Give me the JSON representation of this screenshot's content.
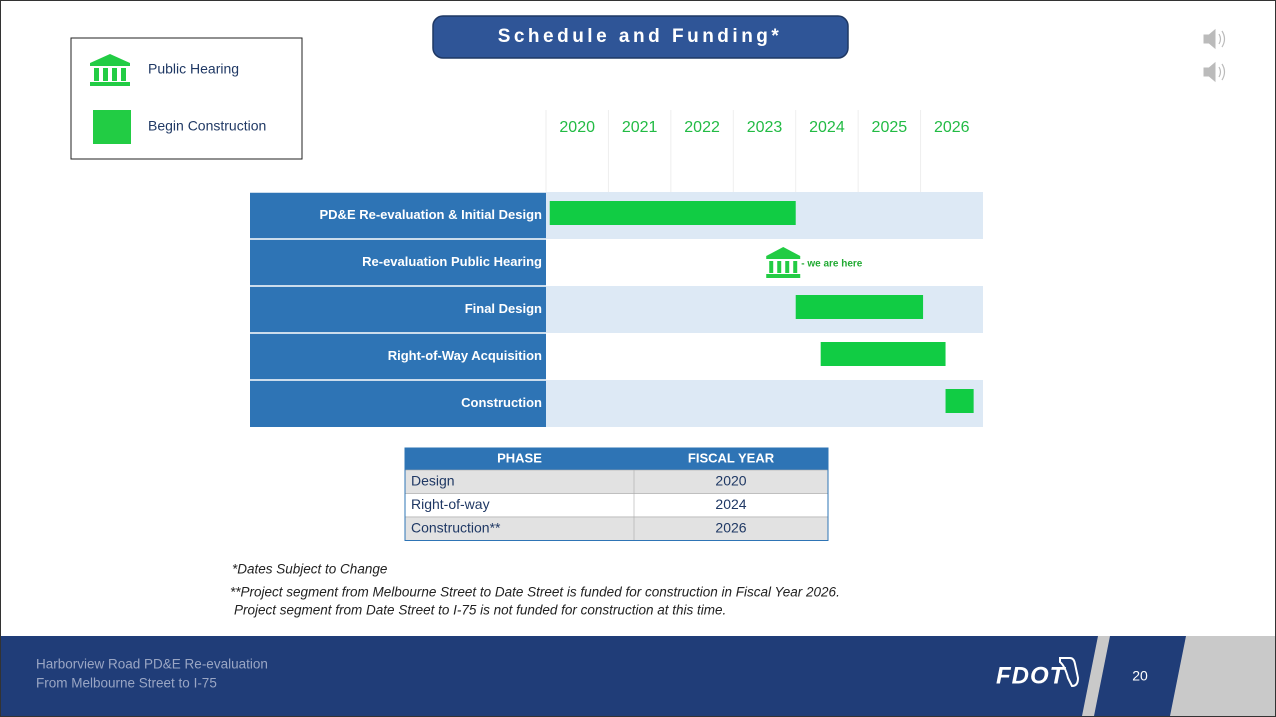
{
  "title": "Schedule and Funding*",
  "legend": [
    {
      "label": "Public Hearing"
    },
    {
      "label": "Begin Construction"
    }
  ],
  "timeline": {
    "years": [
      "2020",
      "2021",
      "2022",
      "2023",
      "2024",
      "2025",
      "2026"
    ],
    "xlim": [
      2020,
      2027
    ],
    "tasks": [
      {
        "name": "PD&E Re-evaluation & Initial Design",
        "start": 2020.06,
        "end": 2024.0
      },
      {
        "name": "Re-evaluation Public Hearing",
        "milestone": 2023.8,
        "annotation": "- we are here"
      },
      {
        "name": "Final Design",
        "start": 2024.0,
        "end": 2026.04
      },
      {
        "name": "Right-of-Way Acquisition",
        "start": 2024.4,
        "end": 2026.4
      },
      {
        "name": "Construction",
        "start": 2026.4,
        "end": 2026.85
      }
    ]
  },
  "table": {
    "header": [
      "PHASE",
      "FISCAL YEAR"
    ],
    "rows": [
      [
        "Design",
        "2020"
      ],
      [
        "Right-of-way",
        "2024"
      ],
      [
        "Construction**",
        "2026"
      ]
    ]
  },
  "notes": [
    "*Dates Subject to Change",
    "**Project segment from Melbourne Street to Date Street is funded for construction in Fiscal Year 2026.",
    "Project segment from Date Street to I-75 is not funded for construction at this time."
  ],
  "footer": {
    "line1": "Harborview Road PD&E Re-evaluation",
    "line2": "From Melbourne Street to I-75",
    "logo": "FDOT",
    "page": "20"
  }
}
